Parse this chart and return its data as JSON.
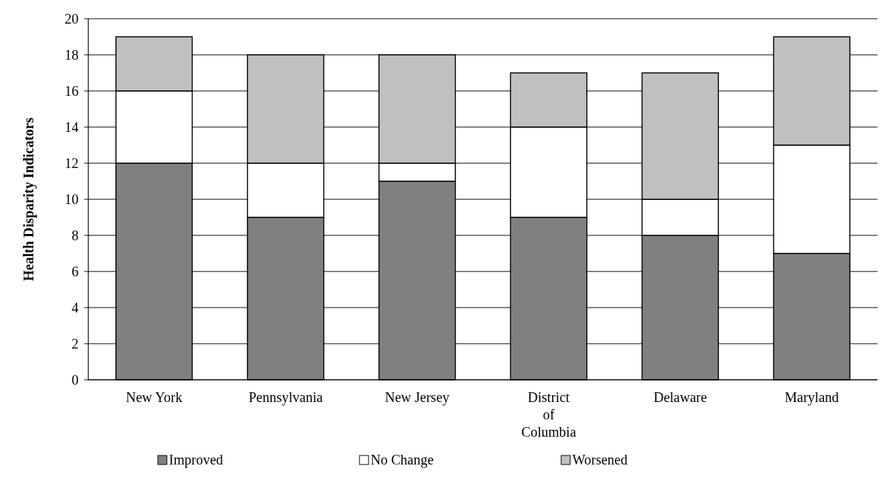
{
  "chart_data": {
    "type": "bar",
    "stacked": true,
    "ylabel": "Health Disparity Indicators",
    "categories": [
      "New York",
      "Pennsylvania",
      "New Jersey",
      "District of Columbia",
      "Delaware",
      "Maryland"
    ],
    "series": [
      {
        "name": "Improved",
        "color": "#808080",
        "values": [
          12,
          9,
          11,
          9,
          8,
          7
        ]
      },
      {
        "name": "No Change",
        "color": "#ffffff",
        "values": [
          4,
          3,
          1,
          5,
          2,
          6
        ]
      },
      {
        "name": "Worsened",
        "color": "#c0c0c0",
        "values": [
          3,
          6,
          6,
          3,
          7,
          6
        ]
      }
    ],
    "ylim": [
      0,
      20
    ],
    "yticks": [
      0,
      2,
      4,
      6,
      8,
      10,
      12,
      14,
      16,
      18,
      20
    ],
    "grid": "y",
    "legend": "bottom"
  }
}
